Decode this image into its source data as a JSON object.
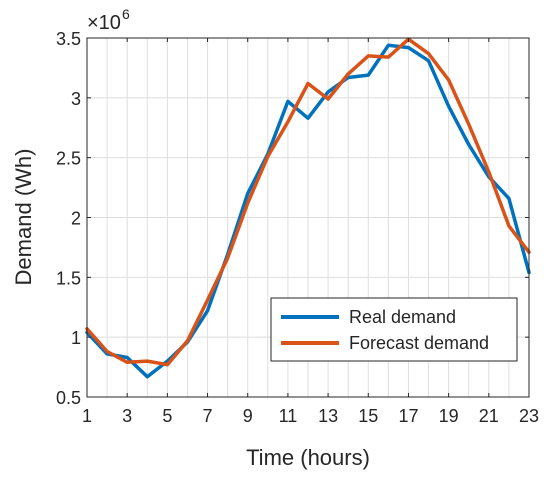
{
  "chart_data": {
    "type": "line",
    "xlabel": "Time (hours)",
    "ylabel": "Demand (Wh)",
    "y_exponent_label": "×10",
    "y_exponent_power": "6",
    "xlim": [
      1,
      23
    ],
    "ylim": [
      0.5,
      3.5
    ],
    "y_scale_multiplier": 1000000,
    "grid": true,
    "legend_position": "bottom-right",
    "x_ticks": [
      "1",
      "3",
      "5",
      "7",
      "9",
      "11",
      "13",
      "15",
      "17",
      "19",
      "21",
      "23"
    ],
    "y_ticks": [
      "0.5",
      "1",
      "1.5",
      "2",
      "2.5",
      "3",
      "3.5"
    ],
    "x": [
      1,
      2,
      3,
      4,
      5,
      6,
      7,
      8,
      9,
      10,
      11,
      12,
      13,
      14,
      15,
      16,
      17,
      18,
      19,
      20,
      21,
      22,
      23
    ],
    "series": [
      {
        "name": "Real demand",
        "color": "#0072BD",
        "values": [
          1.04,
          0.86,
          0.83,
          0.67,
          0.8,
          0.96,
          1.22,
          1.69,
          2.2,
          2.53,
          2.97,
          2.83,
          3.05,
          3.17,
          3.19,
          3.44,
          3.42,
          3.31,
          2.93,
          2.61,
          2.34,
          2.16,
          1.54
        ]
      },
      {
        "name": "Forecast demand",
        "color": "#D95319",
        "values": [
          1.07,
          0.88,
          0.79,
          0.8,
          0.77,
          0.97,
          1.31,
          1.66,
          2.12,
          2.51,
          2.8,
          3.12,
          2.99,
          3.2,
          3.35,
          3.34,
          3.49,
          3.37,
          3.15,
          2.78,
          2.38,
          1.93,
          1.71
        ]
      }
    ]
  }
}
